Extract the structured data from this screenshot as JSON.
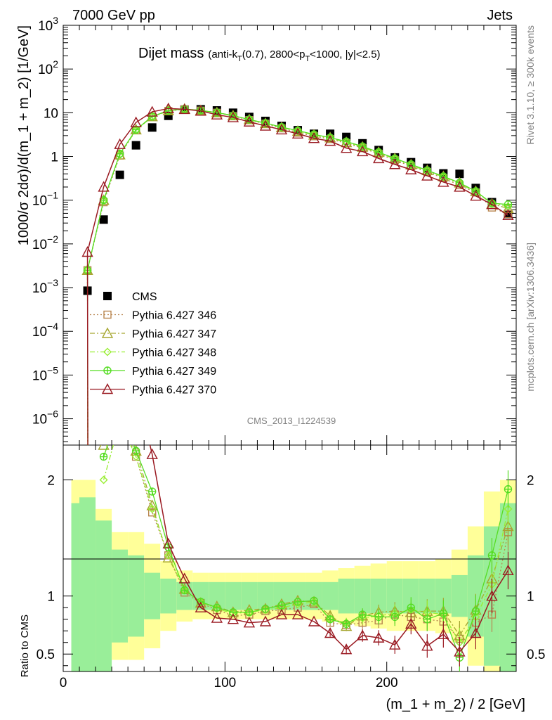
{
  "header": {
    "left": "7000 GeV pp",
    "right": "Jets"
  },
  "title": {
    "main": "Dijet mass",
    "prefix": "(anti-k",
    "sub1": "T",
    "mid": "(0.7), 2800<p",
    "sub2": "T",
    "tail": "<1000, |y|<2.5)"
  },
  "side_labels": {
    "rivet": "Rivet 3.1.10, ≥ 300k events",
    "mcplots": "mcplots.cern.ch [arXiv:1306.3436]"
  },
  "analysis_label": "CMS_2013_I1224539",
  "axis_labels": {
    "y_main": "1000/σ 2dσ)/d(m_1 + m_2) [1/GeV]",
    "y_ratio": "Ratio to CMS",
    "x": "(m_1 + m_2) / 2 [GeV]"
  },
  "colors": {
    "cms": "#000000",
    "p346": "#b8864f",
    "p347": "#a6a630",
    "p348": "#99ee33",
    "p349": "#55dd22",
    "p370": "#9a1a22",
    "band_inner": "#99ee99",
    "band_outer": "#ffff99"
  },
  "chart_data": {
    "type": "scatter",
    "x": [
      10,
      15,
      25,
      35,
      45,
      55,
      65,
      75,
      85,
      95,
      105,
      115,
      125,
      135,
      145,
      155,
      165,
      175,
      185,
      195,
      205,
      215,
      225,
      235,
      245,
      255,
      265,
      275
    ],
    "xlim": [
      0,
      280
    ],
    "ylim": [
      2.5e-07,
      1000
    ],
    "yscale": "log",
    "ratio_ylim": [
      0.35,
      2.3
    ],
    "x_ticks": [
      "0",
      "100",
      "200"
    ],
    "y_ticks": [
      "10^-6",
      "10^-5",
      "10^-4",
      "10^-3",
      "10^-2",
      "10^-1",
      "1",
      "10",
      "10^2",
      "10^3"
    ],
    "ratio_ticks": [
      "0.5",
      "1",
      "2"
    ],
    "legend_position": "middle-left",
    "grid": false,
    "series": [
      {
        "name": "CMS",
        "marker": "square-filled",
        "values": [
          null,
          0.00085,
          0.036,
          0.38,
          1.8,
          4.6,
          8.5,
          11.8,
          12.0,
          11.3,
          10.0,
          8.0,
          6.5,
          5.0,
          4.0,
          3.3,
          3.3,
          2.8,
          2.0,
          1.4,
          0.95,
          0.74,
          0.55,
          0.41,
          0.4,
          0.19,
          0.09,
          0.048
        ],
        "ratio_inner": [
          0.8,
          0.85,
          0.65,
          0.4,
          0.35,
          0.2,
          0.15,
          0.12,
          0.12,
          0.12,
          0.12,
          0.12,
          0.12,
          0.12,
          0.12,
          0.12,
          0.12,
          0.15,
          0.15,
          0.15,
          0.15,
          0.15,
          0.15,
          0.15,
          0.18,
          0.35,
          0.6,
          0.8
        ],
        "ratio_outer": [
          1.0,
          1.0,
          0.75,
          0.55,
          0.55,
          0.45,
          0.3,
          0.22,
          0.2,
          0.2,
          0.2,
          0.2,
          0.2,
          0.2,
          0.2,
          0.2,
          0.22,
          0.24,
          0.26,
          0.28,
          0.3,
          0.3,
          0.3,
          0.32,
          0.4,
          0.6,
          0.9,
          1.0
        ]
      },
      {
        "name": "Pythia 6.427 346",
        "marker": "square-open",
        "style": "dotted",
        "values": [
          null,
          0.0025,
          0.09,
          1.05,
          4.0,
          8.0,
          11.0,
          12.0,
          11.2,
          10.0,
          8.4,
          6.8,
          5.6,
          4.4,
          3.5,
          2.9,
          2.5,
          2.0,
          1.55,
          1.15,
          0.82,
          0.6,
          0.44,
          0.32,
          0.22,
          0.15,
          0.068,
          0.048
        ],
        "ratio": [
          null,
          null,
          2.5,
          2.55,
          2.2,
          1.72,
          1.35,
          1.03,
          0.94,
          0.88,
          0.83,
          0.84,
          0.87,
          0.88,
          0.9,
          0.93,
          0.77,
          0.75,
          0.77,
          0.79,
          0.84,
          0.82,
          0.8,
          0.78,
          0.63,
          0.77,
          0.84,
          1.55
        ]
      },
      {
        "name": "Pythia 6.427 347",
        "marker": "triangle-open",
        "style": "dashdot",
        "values": [
          null,
          0.0025,
          0.1,
          1.1,
          4.1,
          8.2,
          11.2,
          12.2,
          11.3,
          10.1,
          8.6,
          7.0,
          5.7,
          4.6,
          3.8,
          3.1,
          2.7,
          2.1,
          1.65,
          1.25,
          0.9,
          0.65,
          0.48,
          0.35,
          0.25,
          0.16,
          0.082,
          0.065
        ],
        "ratio": [
          null,
          null,
          2.3,
          2.55,
          2.25,
          1.78,
          1.33,
          1.06,
          0.94,
          0.91,
          0.86,
          0.88,
          0.89,
          0.93,
          0.96,
          0.95,
          0.83,
          0.74,
          0.83,
          0.86,
          0.87,
          0.86,
          0.87,
          0.87,
          0.66,
          0.88,
          1.15,
          1.6
        ]
      },
      {
        "name": "Pythia 6.427 348",
        "marker": "diamond-open",
        "style": "dashdot",
        "values": [
          null,
          0.0025,
          0.1,
          1.1,
          4.0,
          8.1,
          11.1,
          12.1,
          11.2,
          10.0,
          8.5,
          6.9,
          5.7,
          4.6,
          3.8,
          3.1,
          2.6,
          2.1,
          1.6,
          1.2,
          0.88,
          0.63,
          0.46,
          0.34,
          0.24,
          0.155,
          0.085,
          0.072
        ],
        "ratio": [
          null,
          null,
          2.0,
          2.5,
          2.2,
          1.75,
          1.35,
          1.05,
          0.95,
          0.89,
          0.85,
          0.86,
          0.88,
          0.9,
          0.93,
          0.95,
          0.8,
          0.77,
          0.81,
          0.83,
          0.85,
          0.88,
          0.86,
          0.84,
          0.6,
          0.82,
          1.1,
          1.75
        ]
      },
      {
        "name": "Pythia 6.427 349",
        "marker": "plus-circle",
        "style": "solid",
        "values": [
          null,
          0.0025,
          0.1,
          1.15,
          4.1,
          8.2,
          11.2,
          12.2,
          11.3,
          10.1,
          8.6,
          7.0,
          5.8,
          4.7,
          3.9,
          3.2,
          2.7,
          2.2,
          1.7,
          1.25,
          0.9,
          0.66,
          0.48,
          0.35,
          0.25,
          0.16,
          0.085,
          0.08
        ],
        "ratio": [
          null,
          null,
          2.2,
          2.6,
          2.25,
          1.9,
          1.42,
          1.05,
          0.95,
          0.9,
          0.86,
          0.86,
          0.89,
          0.92,
          0.95,
          0.96,
          0.8,
          0.76,
          0.84,
          0.82,
          0.82,
          0.9,
          0.8,
          0.85,
          0.47,
          0.87,
          1.35,
          1.92
        ]
      },
      {
        "name": "Pythia 6.427 370",
        "marker": "triangle-open",
        "style": "solid",
        "values": [
          null,
          0.0065,
          0.2,
          1.9,
          6.0,
          10.5,
          12.5,
          12.0,
          11.0,
          9.0,
          7.8,
          6.2,
          5.0,
          4.1,
          3.3,
          2.6,
          2.25,
          1.55,
          1.3,
          0.9,
          0.66,
          0.5,
          0.36,
          0.26,
          0.2,
          0.125,
          0.08,
          0.045
        ],
        "ratio": [
          null,
          null,
          3.0,
          3.0,
          2.8,
          2.22,
          1.45,
          1.15,
          0.9,
          0.81,
          0.8,
          0.77,
          0.78,
          0.84,
          0.84,
          0.78,
          0.68,
          0.54,
          0.66,
          0.64,
          0.58,
          0.76,
          0.57,
          0.67,
          0.52,
          0.68,
          1.0,
          1.22
        ]
      }
    ]
  }
}
